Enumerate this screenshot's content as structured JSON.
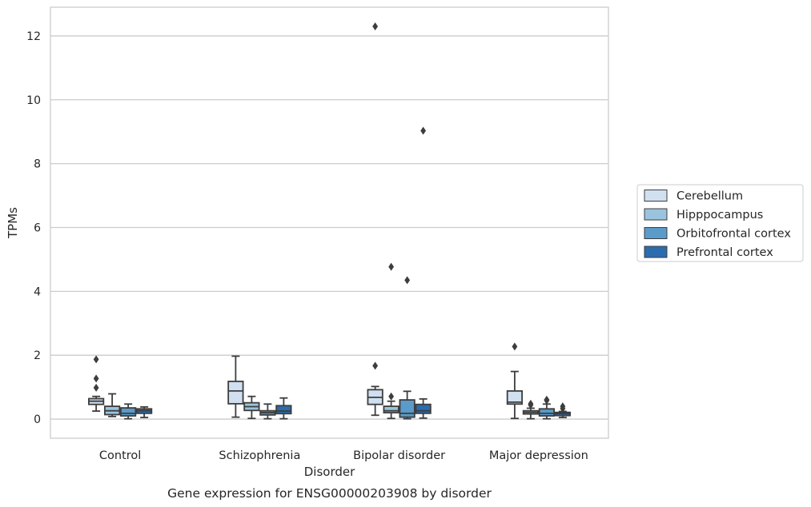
{
  "chart_data": {
    "type": "box",
    "title": "",
    "caption": "Gene expression for ENSG00000203908 by disorder",
    "xlabel": "Disorder",
    "ylabel": "TPMs",
    "ylim": [
      -0.6,
      12.9
    ],
    "yticks": [
      0,
      2,
      4,
      6,
      8,
      10,
      12
    ],
    "grid": "horizontal",
    "legend_position": "right",
    "categories": [
      "Control",
      "Schizophrenia",
      "Bipolar disorder",
      "Major depression"
    ],
    "series": [
      {
        "name": "Cerebellum",
        "color": "#d1e0f0",
        "boxes": [
          {
            "low": 0.25,
            "q1": 0.46,
            "median": 0.56,
            "q3": 0.64,
            "high": 0.71,
            "outliers": [
              1.87,
              1.27,
              0.98
            ]
          },
          {
            "low": 0.06,
            "q1": 0.48,
            "median": 0.88,
            "q3": 1.18,
            "high": 1.97,
            "outliers": []
          },
          {
            "low": 0.12,
            "q1": 0.46,
            "median": 0.68,
            "q3": 0.92,
            "high": 1.02,
            "outliers": [
              12.3,
              1.67
            ]
          },
          {
            "low": 0.02,
            "q1": 0.47,
            "median": 0.53,
            "q3": 0.88,
            "high": 1.49,
            "outliers": [
              2.27
            ]
          }
        ]
      },
      {
        "name": "Hipppocampus",
        "color": "#9ac4de",
        "boxes": [
          {
            "low": 0.08,
            "q1": 0.14,
            "median": 0.26,
            "q3": 0.4,
            "high": 0.79,
            "outliers": []
          },
          {
            "low": 0.02,
            "q1": 0.27,
            "median": 0.39,
            "q3": 0.51,
            "high": 0.71,
            "outliers": []
          },
          {
            "low": 0.02,
            "q1": 0.2,
            "median": 0.26,
            "q3": 0.4,
            "high": 0.56,
            "outliers": [
              4.77,
              0.71
            ]
          },
          {
            "low": 0.01,
            "q1": 0.16,
            "median": 0.21,
            "q3": 0.26,
            "high": 0.34,
            "outliers": [
              0.48,
              0.44
            ]
          }
        ]
      },
      {
        "name": "Orbitofrontal cortex",
        "color": "#5a9bc9",
        "boxes": [
          {
            "low": 0.01,
            "q1": 0.1,
            "median": 0.18,
            "q3": 0.35,
            "high": 0.47,
            "outliers": []
          },
          {
            "low": 0.01,
            "q1": 0.13,
            "median": 0.2,
            "q3": 0.26,
            "high": 0.47,
            "outliers": []
          },
          {
            "low": 0.01,
            "q1": 0.06,
            "median": 0.18,
            "q3": 0.6,
            "high": 0.87,
            "outliers": [
              4.35
            ]
          },
          {
            "low": 0.01,
            "q1": 0.1,
            "median": 0.18,
            "q3": 0.32,
            "high": 0.47,
            "outliers": [
              0.61,
              0.58
            ]
          }
        ]
      },
      {
        "name": "Prefrontal cortex",
        "color": "#2a6cae",
        "boxes": [
          {
            "low": 0.05,
            "q1": 0.18,
            "median": 0.26,
            "q3": 0.32,
            "high": 0.38,
            "outliers": []
          },
          {
            "low": 0.01,
            "q1": 0.17,
            "median": 0.25,
            "q3": 0.42,
            "high": 0.66,
            "outliers": []
          },
          {
            "low": 0.03,
            "q1": 0.18,
            "median": 0.26,
            "q3": 0.46,
            "high": 0.63,
            "outliers": [
              9.03
            ]
          },
          {
            "low": 0.05,
            "q1": 0.11,
            "median": 0.17,
            "q3": 0.21,
            "high": 0.24,
            "outliers": [
              0.4,
              0.33
            ]
          }
        ]
      }
    ]
  }
}
